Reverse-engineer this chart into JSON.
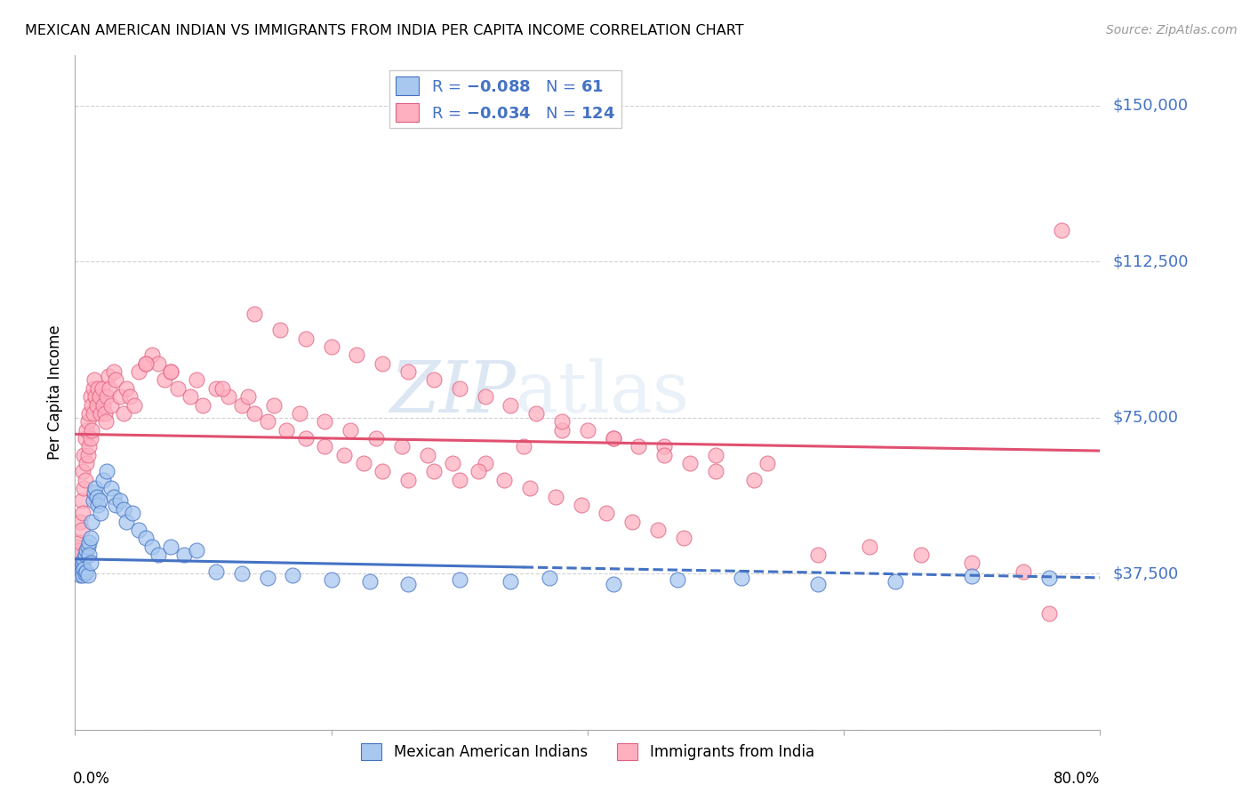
{
  "title": "MEXICAN AMERICAN INDIAN VS IMMIGRANTS FROM INDIA PER CAPITA INCOME CORRELATION CHART",
  "source": "Source: ZipAtlas.com",
  "ylabel": "Per Capita Income",
  "ytick_vals": [
    0,
    37500,
    75000,
    112500,
    150000
  ],
  "ytick_labels": [
    "",
    "$37,500",
    "$75,000",
    "$112,500",
    "$150,000"
  ],
  "xlim": [
    0.0,
    0.8
  ],
  "ylim": [
    0,
    162000
  ],
  "watermark_zip": "ZIP",
  "watermark_atlas": "atlas",
  "blue_fill": "#A8C8F0",
  "blue_edge": "#4472C4",
  "pink_fill": "#FFB0C0",
  "pink_edge": "#E06080",
  "blue_line_color": "#4472C4",
  "pink_line_color": "#E05070",
  "axis_color": "#AAAAAA",
  "grid_color": "#CCCCCC",
  "blue_x": [
    0.002,
    0.003,
    0.004,
    0.004,
    0.005,
    0.005,
    0.006,
    0.006,
    0.007,
    0.007,
    0.008,
    0.008,
    0.009,
    0.009,
    0.01,
    0.01,
    0.011,
    0.011,
    0.012,
    0.012,
    0.013,
    0.014,
    0.015,
    0.016,
    0.017,
    0.018,
    0.019,
    0.02,
    0.022,
    0.025,
    0.028,
    0.03,
    0.032,
    0.035,
    0.038,
    0.04,
    0.045,
    0.05,
    0.055,
    0.06,
    0.065,
    0.075,
    0.085,
    0.095,
    0.11,
    0.13,
    0.15,
    0.17,
    0.2,
    0.23,
    0.26,
    0.3,
    0.34,
    0.37,
    0.42,
    0.47,
    0.52,
    0.58,
    0.64,
    0.7,
    0.76
  ],
  "blue_y": [
    38000,
    37500,
    38500,
    37000,
    39000,
    38000,
    40000,
    37000,
    41000,
    38500,
    42000,
    37500,
    43000,
    38000,
    44000,
    37000,
    45000,
    42000,
    46000,
    40000,
    50000,
    55000,
    57000,
    58000,
    56000,
    54000,
    55000,
    52000,
    60000,
    62000,
    58000,
    56000,
    54000,
    55000,
    53000,
    50000,
    52000,
    48000,
    46000,
    44000,
    42000,
    44000,
    42000,
    43000,
    38000,
    37500,
    36500,
    37000,
    36000,
    35500,
    35000,
    36000,
    35500,
    36500,
    35000,
    36000,
    36500,
    35000,
    35500,
    36800,
    36500
  ],
  "pink_x": [
    0.002,
    0.003,
    0.004,
    0.004,
    0.005,
    0.005,
    0.006,
    0.006,
    0.007,
    0.007,
    0.008,
    0.008,
    0.009,
    0.009,
    0.01,
    0.01,
    0.011,
    0.011,
    0.012,
    0.012,
    0.013,
    0.013,
    0.014,
    0.014,
    0.015,
    0.016,
    0.017,
    0.018,
    0.019,
    0.02,
    0.021,
    0.022,
    0.023,
    0.024,
    0.025,
    0.026,
    0.027,
    0.028,
    0.03,
    0.032,
    0.035,
    0.038,
    0.04,
    0.043,
    0.046,
    0.05,
    0.055,
    0.06,
    0.065,
    0.07,
    0.075,
    0.08,
    0.09,
    0.1,
    0.11,
    0.12,
    0.13,
    0.14,
    0.15,
    0.165,
    0.18,
    0.195,
    0.21,
    0.225,
    0.24,
    0.26,
    0.28,
    0.3,
    0.32,
    0.35,
    0.38,
    0.42,
    0.46,
    0.5,
    0.54,
    0.58,
    0.62,
    0.66,
    0.7,
    0.74,
    0.055,
    0.075,
    0.095,
    0.115,
    0.135,
    0.155,
    0.175,
    0.195,
    0.215,
    0.235,
    0.255,
    0.275,
    0.295,
    0.315,
    0.335,
    0.355,
    0.375,
    0.395,
    0.415,
    0.435,
    0.455,
    0.475,
    0.14,
    0.16,
    0.18,
    0.2,
    0.22,
    0.24,
    0.26,
    0.28,
    0.3,
    0.32,
    0.34,
    0.36,
    0.38,
    0.4,
    0.42,
    0.44,
    0.46,
    0.48,
    0.5,
    0.53,
    0.76,
    0.77
  ],
  "pink_y": [
    44000,
    43000,
    50000,
    45000,
    55000,
    48000,
    62000,
    52000,
    66000,
    58000,
    70000,
    60000,
    72000,
    64000,
    74000,
    66000,
    76000,
    68000,
    80000,
    70000,
    78000,
    72000,
    82000,
    76000,
    84000,
    80000,
    78000,
    82000,
    80000,
    76000,
    82000,
    78000,
    76000,
    74000,
    80000,
    85000,
    82000,
    78000,
    86000,
    84000,
    80000,
    76000,
    82000,
    80000,
    78000,
    86000,
    88000,
    90000,
    88000,
    84000,
    86000,
    82000,
    80000,
    78000,
    82000,
    80000,
    78000,
    76000,
    74000,
    72000,
    70000,
    68000,
    66000,
    64000,
    62000,
    60000,
    62000,
    60000,
    64000,
    68000,
    72000,
    70000,
    68000,
    66000,
    64000,
    42000,
    44000,
    42000,
    40000,
    38000,
    88000,
    86000,
    84000,
    82000,
    80000,
    78000,
    76000,
    74000,
    72000,
    70000,
    68000,
    66000,
    64000,
    62000,
    60000,
    58000,
    56000,
    54000,
    52000,
    50000,
    48000,
    46000,
    100000,
    96000,
    94000,
    92000,
    90000,
    88000,
    86000,
    84000,
    82000,
    80000,
    78000,
    76000,
    74000,
    72000,
    70000,
    68000,
    66000,
    64000,
    62000,
    60000,
    28000,
    120000
  ]
}
